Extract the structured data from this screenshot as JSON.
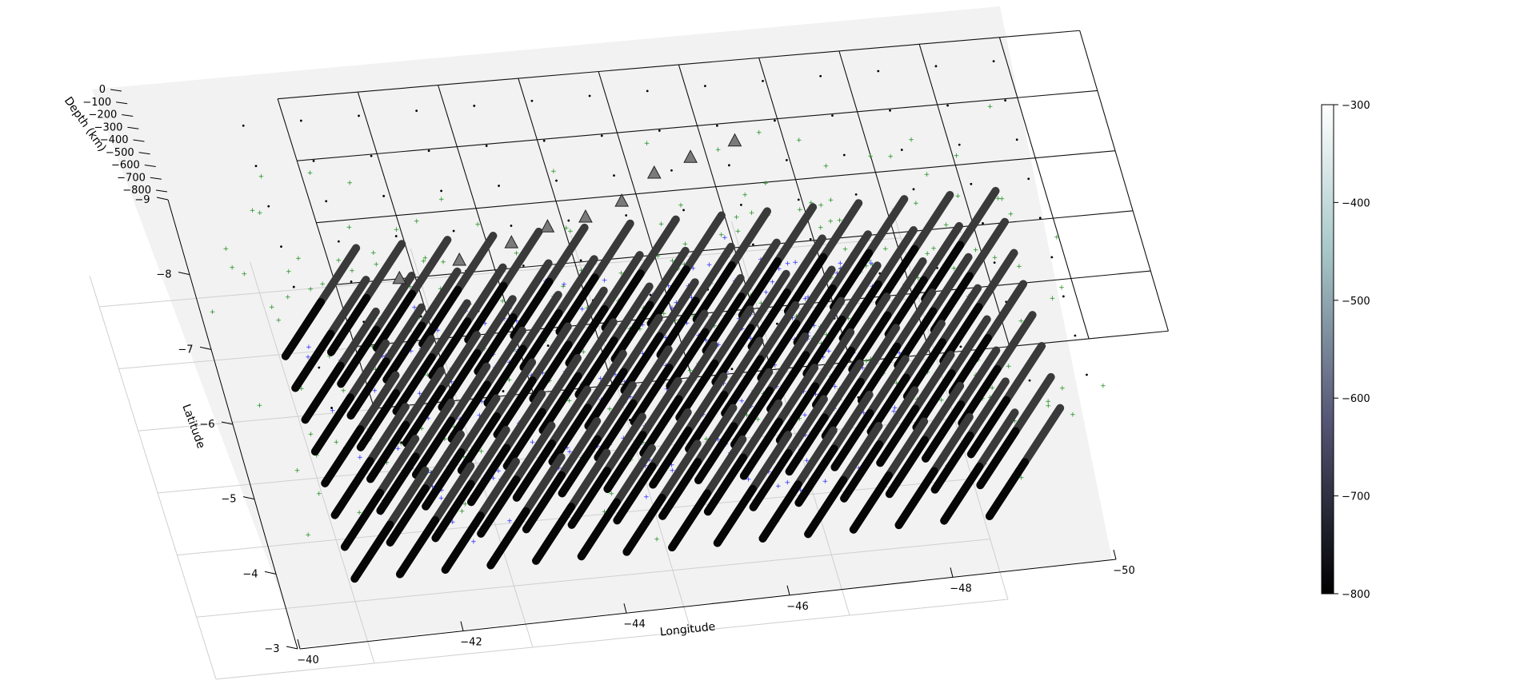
{
  "chart_data": {
    "type": "scatter3d",
    "xlabel": "Longitude",
    "ylabel": "Latitude",
    "zlabel": "Depth (km)",
    "xlim": [
      -40,
      -50
    ],
    "ylim": [
      -3,
      -9.5
    ],
    "zlim": [
      -850,
      0
    ],
    "x_ticks": [
      "−40",
      "−42",
      "−44",
      "−46",
      "−48",
      "−50"
    ],
    "y_ticks": [
      "−3",
      "−4",
      "−5",
      "−6",
      "−7",
      "−8",
      "−9"
    ],
    "z_ticks": [
      "0",
      "−100",
      "−200",
      "−300",
      "−400",
      "−500",
      "−600",
      "−700",
      "−800"
    ],
    "colorbar": {
      "colormap": "bone",
      "range": [
        -800,
        -300
      ],
      "ticks": [
        "−300",
        "−400",
        "−500",
        "−600",
        "−700",
        "−800"
      ]
    },
    "grid": true,
    "station_triangles": [
      {
        "lon": -41.6,
        "lat": -6.3
      },
      {
        "lon": -42.4,
        "lat": -6.5
      },
      {
        "lon": -43.1,
        "lat": -6.7
      },
      {
        "lon": -43.6,
        "lat": -6.9
      },
      {
        "lon": -44.1,
        "lat": -7.0
      },
      {
        "lon": -44.6,
        "lat": -7.2
      },
      {
        "lon": -45.1,
        "lat": -7.6
      },
      {
        "lon": -45.6,
        "lat": -7.8
      },
      {
        "lon": -46.2,
        "lat": -8.0
      }
    ],
    "depth_columns": {
      "lon_range": [
        -41.5,
        -49.5
      ],
      "lat_range": [
        -4.0,
        -7.6
      ],
      "depth_range_km": [
        -800,
        -300
      ],
      "description": "vertical sample columns on a regular lon/lat grid, shaded by depth"
    },
    "earthquakes_blue": {
      "count_visible": "~260",
      "color": "#2b2bff"
    },
    "earthquakes_green": {
      "count_visible": "~300",
      "color": "#1a8a1a"
    },
    "grid_nodes_black": {
      "color": "#000000"
    }
  }
}
